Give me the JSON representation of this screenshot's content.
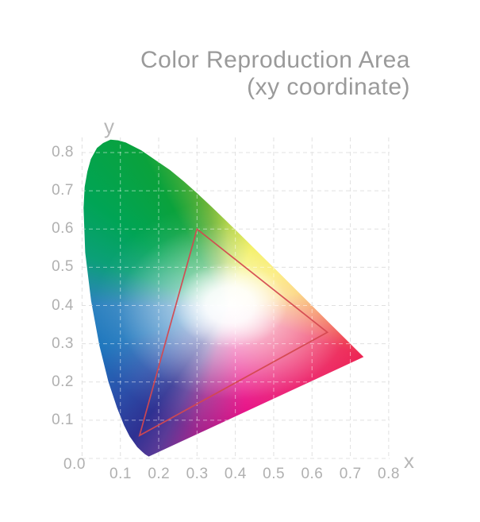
{
  "header": {
    "title_line1": "Color Reproduction Area",
    "title_line2": "(xy coordinate)"
  },
  "chart_data": {
    "type": "area",
    "diagram": "CIE 1931 xy chromaticity diagram (spectral locus horseshoe) with display gamut triangle",
    "title": "Color Reproduction Area (xy coordinate)",
    "xlabel": "x",
    "ylabel": "y",
    "xlim": [
      0.0,
      0.85
    ],
    "ylim": [
      0.0,
      0.85
    ],
    "grid": "dashed",
    "legend": "none",
    "x_gridlines": [
      0.0,
      0.1,
      0.2,
      0.3,
      0.4,
      0.5,
      0.6,
      0.7,
      0.8
    ],
    "y_gridlines": [
      0.0,
      0.1,
      0.2,
      0.3,
      0.4,
      0.5,
      0.6,
      0.7,
      0.8
    ],
    "x_tick_labels": [
      "0.1",
      "0.2",
      "0.3",
      "0.4",
      "0.5",
      "0.6",
      "0.7",
      "0.8"
    ],
    "y_tick_labels": [
      "0.8",
      "0.7",
      "0.6",
      "0.5",
      "0.4",
      "0.3",
      "0.2",
      "0.1"
    ],
    "origin_tick_label": "0.0",
    "gamut_triangle": {
      "vertices_xy": [
        [
          0.3,
          0.6
        ],
        [
          0.64,
          0.33
        ],
        [
          0.15,
          0.06
        ]
      ],
      "stroke_color": "#d4484f"
    },
    "white_region_xy": [
      0.38,
      0.4
    ],
    "spectral_locus_xy": [
      [
        0.1741,
        0.005
      ],
      [
        0.1644,
        0.0109
      ],
      [
        0.1566,
        0.0177
      ],
      [
        0.144,
        0.0297
      ],
      [
        0.1241,
        0.0578
      ],
      [
        0.1096,
        0.0868
      ],
      [
        0.0913,
        0.1327
      ],
      [
        0.0687,
        0.2007
      ],
      [
        0.0454,
        0.295
      ],
      [
        0.0235,
        0.4127
      ],
      [
        0.0082,
        0.5384
      ],
      [
        0.0039,
        0.6548
      ],
      [
        0.0069,
        0.71
      ],
      [
        0.0139,
        0.7502
      ],
      [
        0.023,
        0.783
      ],
      [
        0.0389,
        0.812
      ],
      [
        0.055,
        0.825
      ],
      [
        0.0743,
        0.8338
      ],
      [
        0.094,
        0.832
      ],
      [
        0.1142,
        0.8262
      ],
      [
        0.1547,
        0.8059
      ],
      [
        0.1896,
        0.7816
      ],
      [
        0.2296,
        0.7543
      ],
      [
        0.2658,
        0.7243
      ],
      [
        0.3016,
        0.6923
      ],
      [
        0.3373,
        0.6589
      ],
      [
        0.3731,
        0.6245
      ],
      [
        0.4087,
        0.5896
      ],
      [
        0.4441,
        0.5547
      ],
      [
        0.4788,
        0.5202
      ],
      [
        0.5125,
        0.4866
      ],
      [
        0.5448,
        0.4544
      ],
      [
        0.5752,
        0.4242
      ],
      [
        0.6029,
        0.3965
      ],
      [
        0.627,
        0.3725
      ],
      [
        0.6482,
        0.3514
      ],
      [
        0.6658,
        0.334
      ],
      [
        0.6915,
        0.3083
      ],
      [
        0.7079,
        0.292
      ],
      [
        0.719,
        0.2809
      ],
      [
        0.726,
        0.274
      ],
      [
        0.7347,
        0.2653
      ]
    ]
  },
  "colors": {
    "title_text": "#9a9a9a",
    "tick_text": "#b0b0b0",
    "axis_letter_text": "#b7b7b7",
    "grid_line": "#e0e0e0",
    "grid_line_over_color_area": "rgba(255,255,255,0.5)",
    "triangle_stroke": "#d4484f",
    "background": "#ffffff"
  }
}
